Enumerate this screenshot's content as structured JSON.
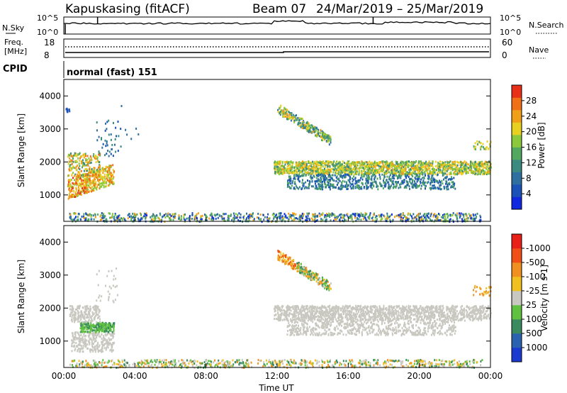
{
  "header": {
    "title": "Kapuskasing (fitACF)",
    "beam": "Beam 07",
    "date_range": "24/Mar/2019 – 25/Mar/2019"
  },
  "status_panels": {
    "nsky_label": "N.Sky",
    "nsky_ticks": [
      "10^5",
      "10^0"
    ],
    "nsearch_label": "N.Search",
    "nsearch_ticks": [
      "10^5",
      "10^0"
    ],
    "freq_label_line1": "Freq.",
    "freq_label_line2": "[MHz]",
    "freq_ticks": [
      "18",
      "8"
    ],
    "nave_label": "Nave",
    "nave_ticks": [
      "60",
      "0"
    ],
    "cpid_label": "CPID",
    "cpid_value": "normal (fast) 151"
  },
  "chart_data": [
    {
      "type": "heatmap",
      "panel": "power",
      "ylabel": "Slant Range [km]",
      "xlabel": "",
      "yticks": [
        "1000",
        "2000",
        "3000",
        "4000"
      ],
      "ylim": [
        200,
        4500
      ],
      "xlim_hours": [
        0,
        24
      ],
      "colorbar": {
        "label": "Power [dB]",
        "ticks": [
          "4",
          "8",
          "12",
          "16",
          "20",
          "24",
          "28"
        ],
        "colors": [
          "#1028e0",
          "#1a52b8",
          "#2e6fa0",
          "#3a8a80",
          "#52a860",
          "#8cc83c",
          "#e8d020",
          "#f0a018",
          "#f07018",
          "#e83018"
        ]
      }
    },
    {
      "type": "heatmap",
      "panel": "velocity",
      "ylabel": "Slant Range [km]",
      "xlabel": "Time UT",
      "yticks": [
        "1000",
        "2000",
        "3000",
        "4000"
      ],
      "ylim": [
        200,
        4500
      ],
      "xlim_hours": [
        0,
        24
      ],
      "xticks": [
        "00:00",
        "04:00",
        "08:00",
        "12:00",
        "16:00",
        "20:00",
        "00:00"
      ],
      "colorbar": {
        "label": "Velocity [m s-1]",
        "ticks": [
          "1000",
          "500",
          "100",
          "25",
          "-25",
          "-100",
          "-500",
          "-1000"
        ],
        "colors": [
          "#1a3ad0",
          "#2a62b0",
          "#3a8a60",
          "#60c040",
          "#c8c8c0",
          "#f0c020",
          "#f09020",
          "#f05018",
          "#e82018"
        ]
      }
    }
  ]
}
